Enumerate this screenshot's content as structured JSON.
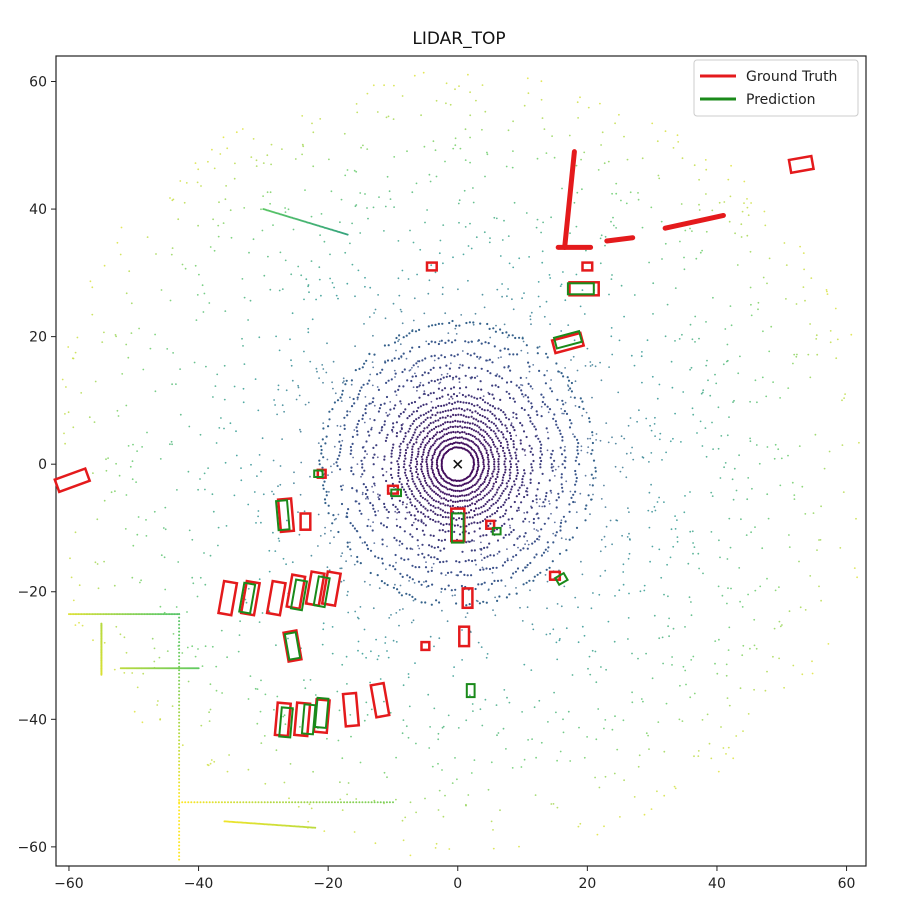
{
  "chart_data": {
    "type": "scatter",
    "title": "LIDAR_TOP",
    "xlim": [
      -62,
      63
    ],
    "ylim": [
      -63,
      64
    ],
    "xticks": [
      -60,
      -40,
      -20,
      0,
      20,
      40,
      60
    ],
    "yticks": [
      -60,
      -40,
      -20,
      0,
      20,
      40,
      60
    ],
    "grid": false,
    "legend_position": "top-right",
    "legend": [
      {
        "label": "Ground Truth",
        "color": "#e41a1c"
      },
      {
        "label": "Prediction",
        "color": "#1a8a1a"
      }
    ],
    "ego_marker": {
      "x": 0,
      "y": 0,
      "symbol": "x"
    },
    "ring_radii": [
      2.5,
      3.2,
      4,
      4.8,
      5.6,
      6.4,
      7.3,
      8.2,
      9.2,
      10.3,
      11.5,
      13,
      14.6,
      16.4,
      18.5,
      21
    ],
    "series": [
      {
        "name": "Ground Truth",
        "color": "#e41a1c",
        "boxes": [
          [
            -59.5,
            -2.5,
            5,
            2,
            20
          ],
          [
            53,
            47,
            3.5,
            2,
            10
          ],
          [
            19.5,
            27.5,
            4.5,
            2,
            0
          ],
          [
            17,
            19,
            4.5,
            2,
            15
          ],
          [
            -26.5,
            -8,
            5,
            2,
            95
          ],
          [
            -23.5,
            -9,
            2.5,
            1.5,
            90
          ],
          [
            -35.5,
            -21,
            5,
            2,
            80
          ],
          [
            -32,
            -21,
            5,
            2,
            80
          ],
          [
            -28,
            -21,
            5,
            2,
            80
          ],
          [
            -25,
            -20,
            5,
            2,
            80
          ],
          [
            -22,
            -19.5,
            5,
            2,
            80
          ],
          [
            -19.5,
            -19.5,
            5,
            2,
            80
          ],
          [
            -25.5,
            -28.5,
            4.5,
            2,
            100
          ],
          [
            -27,
            -40,
            5,
            2,
            85
          ],
          [
            -24,
            -40,
            5,
            2,
            85
          ],
          [
            -21,
            -39.5,
            5,
            2,
            85
          ],
          [
            -16.5,
            -38.5,
            5,
            2,
            95
          ],
          [
            -12,
            -37,
            5,
            2,
            100
          ],
          [
            0,
            -9.5,
            5,
            2,
            90
          ],
          [
            1.5,
            -21,
            3,
            1.5,
            90
          ],
          [
            1,
            -27,
            3,
            1.5,
            90
          ],
          [
            5,
            -9.5,
            1.2,
            1.2,
            0
          ],
          [
            15,
            -17.5,
            1.5,
            1.2,
            0
          ],
          [
            -5,
            -28.5,
            1.2,
            1.2,
            0
          ],
          [
            -21,
            -1.5,
            1.2,
            1.2,
            0
          ],
          [
            -10,
            -4,
            1.5,
            1.2,
            0
          ],
          [
            -4,
            31,
            1.5,
            1.2,
            0
          ],
          [
            20,
            31,
            1.5,
            1.2,
            0
          ]
        ],
        "segments": [
          [
            18,
            49,
            16.5,
            34
          ],
          [
            16.5,
            34,
            15.5,
            34
          ],
          [
            16.5,
            34,
            20.5,
            34
          ],
          [
            23,
            35,
            27,
            35.5
          ],
          [
            32,
            37,
            41,
            39
          ]
        ]
      },
      {
        "name": "Prediction",
        "color": "#1a8a1a",
        "boxes": [
          [
            0,
            -10,
            4.5,
            1.8,
            90
          ],
          [
            19,
            27.5,
            4,
            1.7,
            0
          ],
          [
            17,
            19.5,
            4,
            1.7,
            15
          ],
          [
            -27,
            -8,
            4.5,
            1.7,
            95
          ],
          [
            -32.5,
            -21,
            4.5,
            1.7,
            80
          ],
          [
            -24.5,
            -20.5,
            4.5,
            1.7,
            80
          ],
          [
            -21,
            -20,
            4.5,
            1.7,
            80
          ],
          [
            -25.5,
            -28.5,
            4,
            1.7,
            100
          ],
          [
            -26.5,
            -40.5,
            4.5,
            1.7,
            85
          ],
          [
            -23,
            -40,
            4.5,
            1.7,
            85
          ],
          [
            -21,
            -39,
            4.5,
            1.7,
            85
          ],
          [
            2,
            -35.5,
            2,
            1.2,
            90
          ],
          [
            16,
            -18,
            1.5,
            1.2,
            30
          ],
          [
            -21.5,
            -1.5,
            1.3,
            1,
            0
          ],
          [
            -9.5,
            -4.5,
            1.5,
            1,
            0
          ],
          [
            6,
            -10.5,
            1.2,
            1,
            0
          ]
        ]
      }
    ]
  }
}
